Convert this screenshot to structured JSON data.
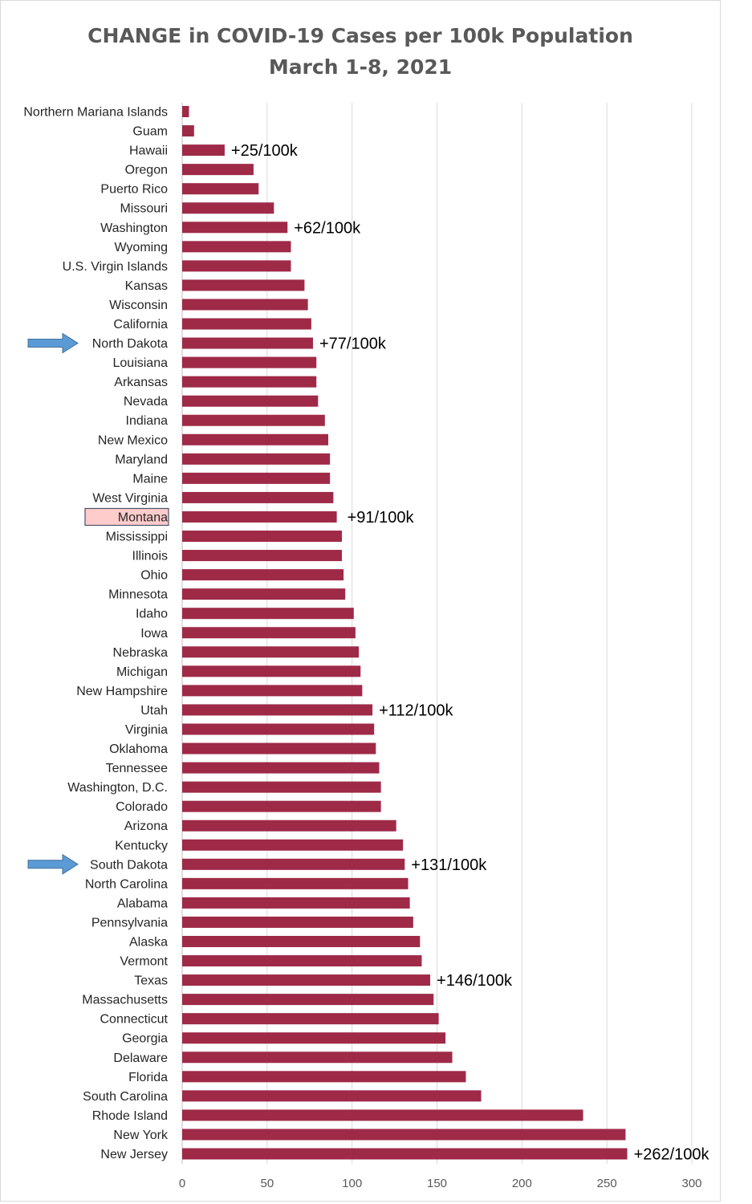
{
  "chart_data": {
    "type": "bar",
    "orientation": "horizontal",
    "title": "CHANGE in COVID-19 Cases per 100k Population",
    "subtitle": "March 1-8, 2021",
    "xlabel": "",
    "ylabel": "",
    "xlim": [
      0,
      300
    ],
    "xticks": [
      0,
      50,
      100,
      150,
      200,
      250,
      300
    ],
    "grid": true,
    "bar_color": "#9e2a47",
    "highlight_fill": "#ffcccc",
    "highlight_border": "#44546a",
    "arrow_color": "#5b9bd5",
    "categories": [
      "Northern Mariana Islands",
      "Guam",
      "Hawaii",
      "Oregon",
      "Puerto Rico",
      "Missouri",
      "Washington",
      "Wyoming",
      "U.S. Virgin Islands",
      "Kansas",
      "Wisconsin",
      "California",
      "North Dakota",
      "Louisiana",
      "Arkansas",
      "Nevada",
      "Indiana",
      "New Mexico",
      "Maryland",
      "Maine",
      "West Virginia",
      "Montana",
      "Mississippi",
      "Illinois",
      "Ohio",
      "Minnesota",
      "Idaho",
      "Iowa",
      "Nebraska",
      "Michigan",
      "New Hampshire",
      "Utah",
      "Virginia",
      "Oklahoma",
      "Tennessee",
      "Washington, D.C.",
      "Colorado",
      "Arizona",
      "Kentucky",
      "South Dakota",
      "North Carolina",
      "Alabama",
      "Pennsylvania",
      "Alaska",
      "Vermont",
      "Texas",
      "Massachusetts",
      "Connecticut",
      "Georgia",
      "Delaware",
      "Florida",
      "South Carolina",
      "Rhode Island",
      "New York",
      "New Jersey"
    ],
    "values": [
      4,
      7,
      25,
      42,
      45,
      54,
      62,
      64,
      64,
      72,
      74,
      76,
      77,
      79,
      79,
      80,
      84,
      86,
      87,
      87,
      89,
      91,
      94,
      94,
      95,
      96,
      101,
      102,
      104,
      105,
      106,
      112,
      113,
      114,
      116,
      117,
      117,
      126,
      130,
      131,
      133,
      134,
      136,
      140,
      141,
      146,
      148,
      151,
      155,
      159,
      167,
      176,
      236,
      261,
      262
    ],
    "annotations": [
      {
        "category": "Hawaii",
        "text": "+25/100k"
      },
      {
        "category": "Washington",
        "text": "+62/100k"
      },
      {
        "category": "North Dakota",
        "text": "+77/100k"
      },
      {
        "category": "Montana",
        "text": "+91/100k"
      },
      {
        "category": "Utah",
        "text": "+112/100k"
      },
      {
        "category": "South Dakota",
        "text": "+131/100k"
      },
      {
        "category": "Texas",
        "text": "+146/100k"
      },
      {
        "category": "New Jersey",
        "text": "+262/100k"
      }
    ],
    "highlighted_category": "Montana",
    "arrow_categories": [
      "North Dakota",
      "South Dakota"
    ]
  }
}
